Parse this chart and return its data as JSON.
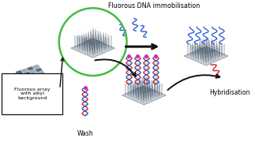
{
  "title": "Fluorous DNA immobilisation",
  "label_fluorous_array": "Fluorous array\nwith alkyl\nbackground",
  "label_wash": "Wash",
  "label_hybridisation": "Hybridisation",
  "bg_color": "#ffffff",
  "surface_color_top": "#c8d0d8",
  "surface_color_side": "#a0aab4",
  "surface_edge_color": "#808a94",
  "needle_color": "#3a4a5a",
  "blue_dna_color": "#2255cc",
  "red_dna_color": "#cc2222",
  "magenta_dot_color": "#dd22aa",
  "green_circle_color": "#44bb44",
  "arrow_color": "#111111",
  "box_color": "#111111",
  "checker_light": "#9aacb8",
  "checker_dark": "#5a7080"
}
